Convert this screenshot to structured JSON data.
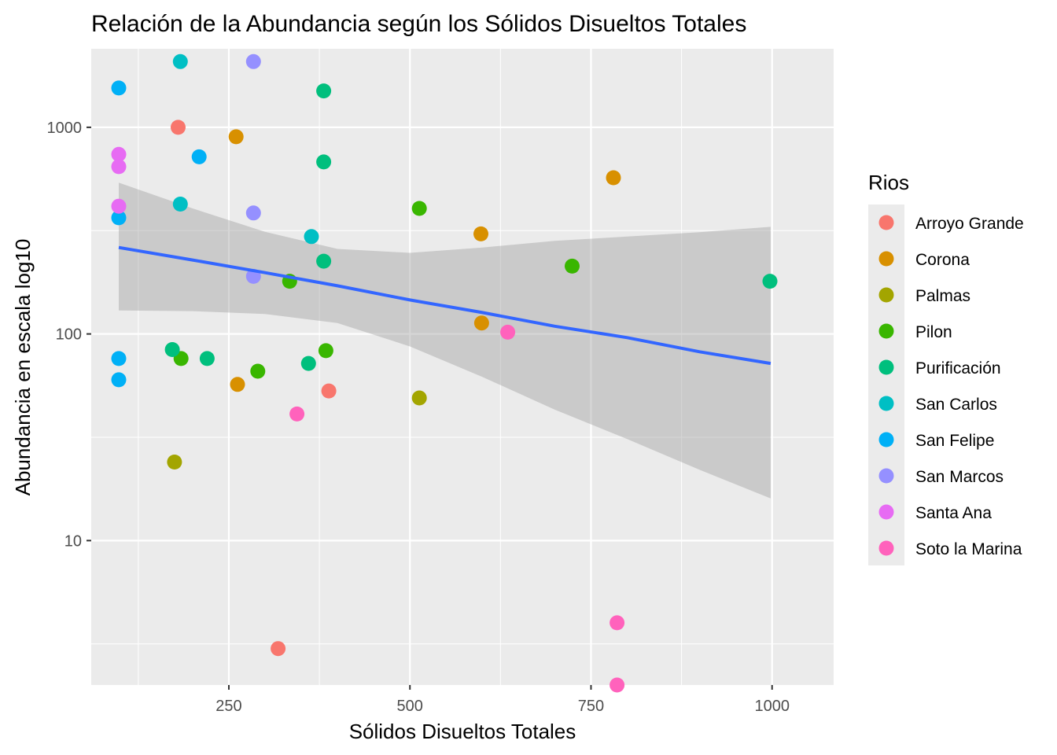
{
  "chart_data": {
    "type": "scatter",
    "title": "Relación de la Abundancia según los Sólidos Disueltos Totales",
    "xlabel": "Sólidos Disueltos Totales",
    "ylabel": "Abundancia en escala log10",
    "xlim": [
      60,
      1085
    ],
    "ylim": [
      2,
      2400
    ],
    "y_scale": "log10",
    "x_ticks": [
      250,
      500,
      750,
      1000
    ],
    "x_tick_labels": [
      "250",
      "500",
      "750",
      "1000"
    ],
    "y_ticks": [
      10,
      100,
      1000
    ],
    "y_tick_labels": [
      "10",
      "100",
      "1000"
    ],
    "grid": true,
    "panel_background": "#ebebeb",
    "legend": {
      "title": "Rios",
      "placement": "right",
      "entries": [
        {
          "name": "Arroyo Grande",
          "color": "#f8766d"
        },
        {
          "name": "Corona",
          "color": "#d89000"
        },
        {
          "name": "Palmas",
          "color": "#a3a500"
        },
        {
          "name": "Pilon",
          "color": "#39b600"
        },
        {
          "name": "Purificación",
          "color": "#00bf7d"
        },
        {
          "name": "San Carlos",
          "color": "#00bfc4"
        },
        {
          "name": "San Felipe",
          "color": "#00b0f6"
        },
        {
          "name": "San Marcos",
          "color": "#9590ff"
        },
        {
          "name": "Santa Ana",
          "color": "#e76bf3"
        },
        {
          "name": "Soto la Marina",
          "color": "#ff62bc"
        }
      ]
    },
    "series": [
      {
        "name": "Arroyo Grande",
        "color": "#f8766d",
        "points": [
          [
            180,
            1000
          ],
          [
            388,
            53
          ],
          [
            318,
            3
          ]
        ]
      },
      {
        "name": "Corona",
        "color": "#d89000",
        "points": [
          [
            260,
            900
          ],
          [
            262,
            57
          ],
          [
            781,
            570
          ],
          [
            598,
            305
          ],
          [
            599,
            113
          ]
        ]
      },
      {
        "name": "Palmas",
        "color": "#a3a500",
        "points": [
          [
            175,
            24
          ],
          [
            513,
            49
          ]
        ]
      },
      {
        "name": "Pilon",
        "color": "#39b600",
        "points": [
          [
            184,
            76
          ],
          [
            290,
            66
          ],
          [
            334,
            180
          ],
          [
            384,
            83
          ],
          [
            513,
            405
          ],
          [
            724,
            213
          ]
        ]
      },
      {
        "name": "Purificación",
        "color": "#00bf7d",
        "points": [
          [
            172,
            84
          ],
          [
            220,
            76
          ],
          [
            360,
            72
          ],
          [
            381,
            1500
          ],
          [
            381,
            680
          ],
          [
            381,
            225
          ],
          [
            997,
            180
          ]
        ]
      },
      {
        "name": "San Carlos",
        "color": "#00bfc4",
        "points": [
          [
            183,
            2080
          ],
          [
            183,
            425
          ],
          [
            364,
            296
          ]
        ]
      },
      {
        "name": "San Felipe",
        "color": "#00b0f6",
        "points": [
          [
            98,
            1550
          ],
          [
            209,
            720
          ],
          [
            98,
            365
          ],
          [
            98,
            76
          ],
          [
            98,
            60
          ]
        ]
      },
      {
        "name": "San Marcos",
        "color": "#9590ff",
        "points": [
          [
            284,
            2080
          ],
          [
            284,
            385
          ],
          [
            284,
            190
          ]
        ]
      },
      {
        "name": "Santa Ana",
        "color": "#e76bf3",
        "points": [
          [
            98,
            740
          ],
          [
            98,
            645
          ],
          [
            98,
            415
          ]
        ]
      },
      {
        "name": "Soto la Marina",
        "color": "#ff62bc",
        "points": [
          [
            344,
            41
          ],
          [
            635,
            102
          ],
          [
            786,
            4
          ],
          [
            786,
            2
          ]
        ]
      }
    ],
    "trend": {
      "method": "lm",
      "color": "#3366ff",
      "band_color": "#999999",
      "x": [
        98,
        200,
        300,
        400,
        500,
        600,
        700,
        800,
        900,
        998
      ],
      "y": [
        262,
        228,
        198,
        171,
        146,
        127,
        109,
        96,
        82,
        72
      ],
      "ci_upper": [
        540,
        405,
        312,
        258,
        247,
        262,
        282,
        296,
        311,
        330
      ],
      "ci_lower": [
        130,
        129,
        125,
        113,
        87,
        62,
        43,
        31,
        22,
        16
      ]
    }
  }
}
